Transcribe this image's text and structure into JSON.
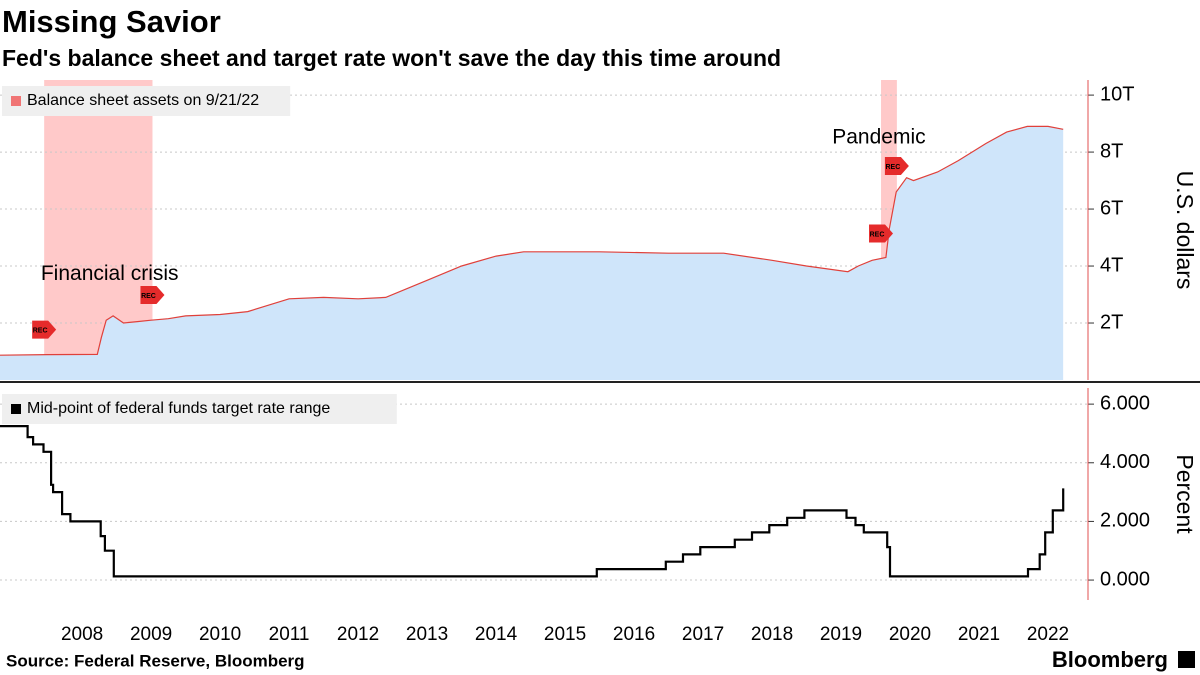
{
  "title": "Missing Savior",
  "subtitle": "Fed's balance sheet and target rate won't save the day this time around",
  "source": "Source: Federal Reserve, Bloomberg",
  "brand": "Bloomberg",
  "chart_data": [
    {
      "type": "area",
      "y_label": "U.S. dollars",
      "series": [
        {
          "name": "Balance sheet assets on 9/21/22",
          "color": "#e0403a",
          "fill": "#cfe5fa",
          "legend_color": "#f07474",
          "x": [
            2007.31,
            2008.0,
            2008.72,
            2008.78,
            2008.85,
            2008.95,
            2009.1,
            2009.3,
            2009.5,
            2009.75,
            2010.0,
            2010.5,
            2010.9,
            2011.5,
            2012.0,
            2012.5,
            2012.9,
            2013.5,
            2014.0,
            2014.5,
            2014.9,
            2016.0,
            2017.0,
            2017.8,
            2018.5,
            2019.0,
            2019.6,
            2019.75,
            2019.95,
            2020.15,
            2020.2,
            2020.3,
            2020.45,
            2020.55,
            2020.9,
            2021.2,
            2021.6,
            2021.9,
            2022.2,
            2022.5,
            2022.72
          ],
          "values": [
            870000000000.0,
            890000000000.0,
            900000000000.0,
            1500000000000.0,
            2100000000000.0,
            2250000000000.0,
            2000000000000.0,
            2050000000000.0,
            2100000000000.0,
            2150000000000.0,
            2250000000000.0,
            2300000000000.0,
            2400000000000.0,
            2850000000000.0,
            2900000000000.0,
            2850000000000.0,
            2900000000000.0,
            3500000000000.0,
            4000000000000.0,
            4350000000000.0,
            4500000000000.0,
            4500000000000.0,
            4450000000000.0,
            4450000000000.0,
            4200000000000.0,
            4000000000000.0,
            3800000000000.0,
            4000000000000.0,
            4200000000000.0,
            4300000000000.0,
            5300000000000.0,
            6600000000000.0,
            7100000000000.0,
            7000000000000.0,
            7300000000000.0,
            7700000000000.0,
            8300000000000.0,
            8700000000000.0,
            8900000000000.0,
            8900000000000.0,
            8800000000000.0
          ]
        }
      ],
      "recessions": [
        {
          "start": 2007.95,
          "end": 2009.52
        },
        {
          "start": 2020.08,
          "end": 2020.31
        }
      ],
      "recession_label": "REC",
      "annotations": [
        {
          "text": "Financial crisis",
          "x": 2008.9,
          "y": 3700000000000.0
        },
        {
          "text": "Pandemic",
          "x": 2020.05,
          "y": 8500000000000.0
        }
      ],
      "xlim": [
        2007.31,
        2023.08
      ],
      "ylim": [
        0,
        10530000000000.0
      ],
      "yticks": [
        {
          "value": 2000000000000.0,
          "label": "2T"
        },
        {
          "value": 4000000000000.0,
          "label": "4T"
        },
        {
          "value": 6000000000000.0,
          "label": "6T"
        },
        {
          "value": 8000000000000.0,
          "label": "8T"
        },
        {
          "value": 10000000000000.0,
          "label": "10T"
        }
      ],
      "grid": true,
      "legend": "upper-left"
    },
    {
      "type": "line",
      "y_label": "Percent",
      "series": [
        {
          "name": "Mid-point of federal funds target rate range",
          "color": "#000000",
          "x": [
            2007.31,
            2007.71,
            2007.71,
            2007.79,
            2007.79,
            2007.94,
            2007.94,
            2008.05,
            2008.05,
            2008.08,
            2008.08,
            2008.21,
            2008.21,
            2008.33,
            2008.33,
            2008.77,
            2008.77,
            2008.83,
            2008.83,
            2008.96,
            2008.96,
            2015.96,
            2015.96,
            2016.96,
            2016.96,
            2017.21,
            2017.21,
            2017.46,
            2017.46,
            2017.96,
            2017.96,
            2018.21,
            2018.21,
            2018.46,
            2018.46,
            2018.72,
            2018.72,
            2018.97,
            2018.97,
            2019.58,
            2019.58,
            2019.71,
            2019.71,
            2019.83,
            2019.83,
            2020.17,
            2020.17,
            2020.21,
            2020.21,
            2022.21,
            2022.21,
            2022.38,
            2022.38,
            2022.46,
            2022.46,
            2022.57,
            2022.57,
            2022.72,
            2022.72
          ],
          "values": [
            5.25,
            5.25,
            4.875,
            4.875,
            4.625,
            4.625,
            4.375,
            4.375,
            3.25,
            3.25,
            3.0,
            3.0,
            2.25,
            2.25,
            2.0,
            2.0,
            1.5,
            1.5,
            1.0,
            1.0,
            0.125,
            0.125,
            0.375,
            0.375,
            0.625,
            0.625,
            0.875,
            0.875,
            1.125,
            1.125,
            1.375,
            1.375,
            1.625,
            1.625,
            1.875,
            1.875,
            2.125,
            2.125,
            2.375,
            2.375,
            2.125,
            2.125,
            1.875,
            1.875,
            1.625,
            1.625,
            1.125,
            1.125,
            0.125,
            0.125,
            0.375,
            0.375,
            0.875,
            0.875,
            1.625,
            1.625,
            2.375,
            2.375,
            3.125
          ]
        }
      ],
      "xlim": [
        2007.31,
        2023.08
      ],
      "ylim": [
        -0.68,
        6.55
      ],
      "yticks": [
        {
          "value": 0,
          "label": "0.000"
        },
        {
          "value": 2,
          "label": "2.000"
        },
        {
          "value": 4,
          "label": "4.000"
        },
        {
          "value": 6,
          "label": "6.000"
        }
      ],
      "xticks": [
        {
          "value": 2008.5,
          "label": "2008"
        },
        {
          "value": 2009.5,
          "label": "2009"
        },
        {
          "value": 2010.5,
          "label": "2010"
        },
        {
          "value": 2011.5,
          "label": "2011"
        },
        {
          "value": 2012.5,
          "label": "2012"
        },
        {
          "value": 2013.5,
          "label": "2013"
        },
        {
          "value": 2014.5,
          "label": "2014"
        },
        {
          "value": 2015.5,
          "label": "2015"
        },
        {
          "value": 2016.5,
          "label": "2016"
        },
        {
          "value": 2017.5,
          "label": "2017"
        },
        {
          "value": 2018.5,
          "label": "2018"
        },
        {
          "value": 2019.5,
          "label": "2019"
        },
        {
          "value": 2020.5,
          "label": "2020"
        },
        {
          "value": 2021.5,
          "label": "2021"
        },
        {
          "value": 2022.5,
          "label": "2022"
        }
      ],
      "grid": true,
      "legend": "upper-left"
    }
  ]
}
